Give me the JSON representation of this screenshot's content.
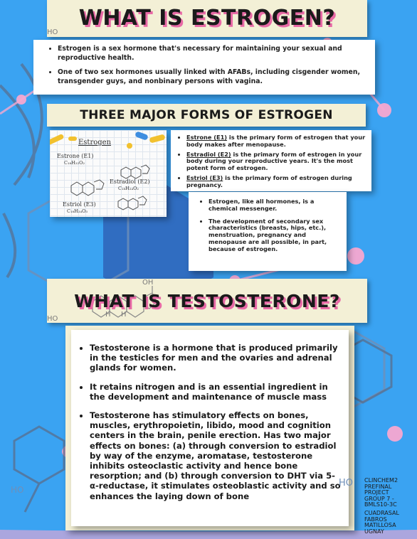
{
  "colors": {
    "background": "#3aa3f2",
    "pink": "#e86aa6",
    "banner": "#f3f0d6",
    "dark_text": "#1a1a1a"
  },
  "estrogen": {
    "title": "WHAT IS ESTROGEN?",
    "ho_label": "HO",
    "bullets": [
      "Estrogen is a sex hormone that's necessary for maintaining your sexual and reproductive health.",
      "One of two sex hormones usually linked with AFABs, including cisgender women, transgender guys, and nonbinary persons with vagina."
    ]
  },
  "forms": {
    "title": "THREE MAJOR FORMS OF ESTROGEN",
    "image": {
      "heading": "Estrogen",
      "estrone_label": "Estrone (E1)",
      "estrone_formula": "C₁₈H₂₂O₂",
      "estradiol_label": "Estradiol (E2)",
      "estradiol_formula": "C₁₈H₂₄O₂",
      "estriol_label": "Estriol (E3)",
      "estriol_formula": "C₁₈H₂₄O₃"
    },
    "items": [
      {
        "term": "Estrone (E1)",
        "rest": " is the primary form of estrogen that your body makes after menopause."
      },
      {
        "term": "Estradiol (E2)",
        "rest": " is the primary form of estrogen in your body during your reproductive years. It's the most potent form of estrogen."
      },
      {
        "term": "Estriol (E3)",
        "rest": " is the primary form of estrogen during pregnancy."
      }
    ],
    "extra": [
      "Estrogen, like all hormones, is a chemical messenger.",
      "The development of secondary sex characteristics (breasts, hips, etc.), menstruation, pregnancy and menopause are all possible, in part, because of estrogen."
    ]
  },
  "testosterone": {
    "title": "WHAT IS TESTOSTERONE?",
    "oh_label": "OH",
    "ho_label": "HO",
    "h1": "H",
    "h2": "H",
    "bullets": [
      "Testosterone is a hormone that is produced primarily in the testicles for men and the ovaries and adrenal glands for women.",
      "It retains nitrogen and is an essential ingredient in the development and maintenance of muscle mass",
      "Testosterone has stimulatory effects on bones, muscles, erythropoietin, libido, mood and cognition centers in the brain, penile erection. Has two major effects on bones: (a) through conversion to estradiol by way of the enzyme, aromatase, testosterone inhibits osteoclastic activity and hence bone resorption; and (b) through conversion to DHT via 5-α-reductase, it stimulates osteoblastic activity and so enhances the laying down of bone"
    ]
  },
  "decor": {
    "ho_left": "HO",
    "ho_right": "HO"
  },
  "credits": {
    "lines": [
      "CLINCHEM2",
      "PREFINAL",
      "PROJECT",
      "GROUP 7 -",
      "BMLS10-3C"
    ],
    "names": [
      "CUADRASAL",
      "FABROS",
      "MATILLOSA",
      "UGNAY"
    ]
  }
}
